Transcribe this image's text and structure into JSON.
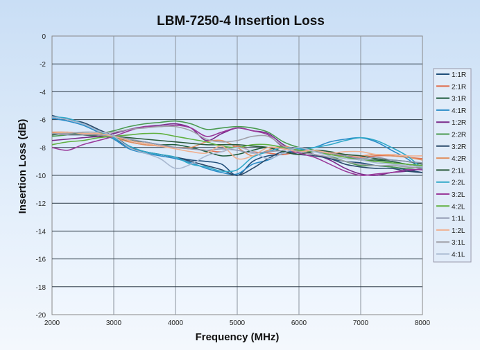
{
  "chart_data": {
    "type": "line",
    "title": "LBM-7250-4 Insertion Loss",
    "xlabel": "Frequency (MHz)",
    "ylabel": "Insertion Loss (dB)",
    "xlim": [
      2000,
      8000
    ],
    "ylim": [
      -20,
      0
    ],
    "xticks": [
      "2000",
      "3000",
      "4000",
      "5000",
      "6000",
      "7000",
      "8000"
    ],
    "yticks": [
      "0",
      "-2",
      "-4",
      "-6",
      "-8",
      "-10",
      "-12",
      "-14",
      "-16",
      "-18",
      "-20"
    ],
    "grid": true,
    "legend_position": "right",
    "x": [
      2000,
      2250,
      2500,
      2750,
      3000,
      3250,
      3500,
      3750,
      4000,
      4250,
      4500,
      4750,
      5000,
      5250,
      5500,
      5750,
      6000,
      6250,
      6500,
      6750,
      7000,
      7250,
      7500,
      7750,
      8000
    ],
    "series": [
      {
        "name": "1:1R",
        "color": "#1f4e79",
        "values": [
          -5.8,
          -6.0,
          -6.3,
          -6.8,
          -7.3,
          -8.0,
          -8.3,
          -8.5,
          -8.7,
          -8.9,
          -9.0,
          -9.2,
          -10.0,
          -9.0,
          -8.6,
          -8.5,
          -8.3,
          -8.5,
          -8.8,
          -9.0,
          -9.1,
          -9.3,
          -9.4,
          -9.6,
          -9.8
        ]
      },
      {
        "name": "2:1R",
        "color": "#e07050",
        "values": [
          -7.0,
          -7.1,
          -7.0,
          -7.2,
          -7.3,
          -7.6,
          -7.8,
          -7.9,
          -8.0,
          -8.1,
          -8.2,
          -8.3,
          -7.9,
          -8.3,
          -8.4,
          -8.5,
          -8.3,
          -8.2,
          -8.5,
          -8.6,
          -8.7,
          -8.6,
          -8.6,
          -8.7,
          -8.8
        ]
      },
      {
        "name": "3:1R",
        "color": "#1e5a3a",
        "values": [
          -7.0,
          -7.0,
          -7.1,
          -7.2,
          -7.3,
          -7.5,
          -7.6,
          -7.8,
          -7.8,
          -8.0,
          -8.3,
          -8.6,
          -8.5,
          -8.2,
          -8.0,
          -8.3,
          -8.5,
          -8.3,
          -8.4,
          -8.6,
          -8.9,
          -8.9,
          -9.0,
          -9.2,
          -9.3
        ]
      },
      {
        "name": "4:1R",
        "color": "#2a8cc8",
        "values": [
          -5.9,
          -6.1,
          -6.4,
          -6.9,
          -7.4,
          -8.1,
          -8.4,
          -8.6,
          -8.8,
          -9.1,
          -9.5,
          -9.8,
          -9.9,
          -9.2,
          -8.9,
          -8.4,
          -8.2,
          -8.0,
          -7.6,
          -7.4,
          -7.3,
          -7.6,
          -8.2,
          -8.8,
          -9.6
        ]
      },
      {
        "name": "1:2R",
        "color": "#7a2a8a",
        "values": [
          -7.5,
          -7.4,
          -7.3,
          -7.2,
          -7.0,
          -6.7,
          -6.5,
          -6.4,
          -6.3,
          -6.6,
          -7.5,
          -7.0,
          -6.6,
          -6.8,
          -7.0,
          -7.8,
          -8.3,
          -8.5,
          -8.9,
          -9.5,
          -9.9,
          -10.0,
          -9.8,
          -9.7,
          -9.5
        ]
      },
      {
        "name": "2:2R",
        "color": "#4a9a50",
        "values": [
          -7.2,
          -7.1,
          -7.0,
          -7.0,
          -6.8,
          -6.5,
          -6.3,
          -6.2,
          -6.1,
          -6.3,
          -6.7,
          -6.6,
          -6.5,
          -6.6,
          -6.9,
          -7.6,
          -8.0,
          -8.2,
          -8.6,
          -9.0,
          -9.3,
          -9.3,
          -9.4,
          -9.5,
          -9.4
        ]
      },
      {
        "name": "3:2R",
        "color": "#2a4a6a",
        "values": [
          -5.7,
          -6.0,
          -6.2,
          -6.7,
          -7.2,
          -7.9,
          -8.3,
          -8.5,
          -8.7,
          -9.0,
          -9.3,
          -9.6,
          -10.0,
          -9.5,
          -8.8,
          -8.3,
          -8.5,
          -8.6,
          -8.8,
          -9.2,
          -9.4,
          -9.5,
          -9.5,
          -9.7,
          -9.8
        ]
      },
      {
        "name": "4:2R",
        "color": "#e09060",
        "values": [
          -6.9,
          -6.9,
          -7.0,
          -7.1,
          -7.3,
          -7.6,
          -7.8,
          -7.9,
          -8.0,
          -8.0,
          -7.6,
          -7.5,
          -8.0,
          -8.6,
          -8.2,
          -7.9,
          -8.2,
          -8.3,
          -8.4,
          -8.5,
          -8.6,
          -8.5,
          -8.6,
          -8.7,
          -8.9
        ]
      },
      {
        "name": "2:1L",
        "color": "#2a5a3a",
        "values": [
          -7.1,
          -7.0,
          -7.1,
          -7.1,
          -7.2,
          -7.3,
          -7.4,
          -7.5,
          -7.6,
          -7.7,
          -7.8,
          -7.8,
          -7.8,
          -7.9,
          -8.0,
          -8.3,
          -8.5,
          -8.2,
          -8.3,
          -8.5,
          -8.6,
          -8.8,
          -8.9,
          -9.0,
          -9.2
        ]
      },
      {
        "name": "2:2L",
        "color": "#30a8c8",
        "values": [
          -5.8,
          -5.9,
          -6.3,
          -6.8,
          -7.3,
          -7.9,
          -8.3,
          -8.5,
          -8.7,
          -9.2,
          -9.4,
          -9.7,
          -9.6,
          -8.7,
          -8.3,
          -8.0,
          -8.1,
          -8.0,
          -7.8,
          -7.5,
          -7.3,
          -7.5,
          -8.0,
          -8.6,
          -9.5
        ]
      },
      {
        "name": "3:2L",
        "color": "#9a3a9a",
        "values": [
          -8.0,
          -8.2,
          -7.8,
          -7.5,
          -7.2,
          -6.8,
          -6.5,
          -6.5,
          -6.4,
          -6.6,
          -7.2,
          -6.9,
          -6.6,
          -6.8,
          -7.1,
          -8.0,
          -8.4,
          -8.7,
          -9.2,
          -9.7,
          -10.0,
          -9.9,
          -9.8,
          -9.6,
          -9.6
        ]
      },
      {
        "name": "4:2L",
        "color": "#60b040",
        "values": [
          -7.8,
          -7.6,
          -7.5,
          -7.3,
          -7.2,
          -7.1,
          -7.0,
          -7.0,
          -7.2,
          -7.4,
          -7.6,
          -7.9,
          -8.0,
          -7.8,
          -7.8,
          -8.0,
          -8.2,
          -8.3,
          -8.5,
          -8.7,
          -8.9,
          -9.0,
          -9.1,
          -9.2,
          -9.3
        ]
      },
      {
        "name": "1:1L",
        "color": "#9098b0",
        "values": [
          -7.0,
          -7.1,
          -7.1,
          -7.1,
          -7.2,
          -7.4,
          -7.6,
          -7.8,
          -8.0,
          -8.1,
          -8.2,
          -8.1,
          -8.2,
          -8.4,
          -8.3,
          -8.2,
          -8.0,
          -8.3,
          -8.4,
          -8.6,
          -8.8,
          -8.7,
          -8.9,
          -9.0,
          -9.1
        ]
      },
      {
        "name": "1:2L",
        "color": "#f0b090",
        "values": [
          -7.0,
          -6.9,
          -7.0,
          -7.0,
          -7.2,
          -7.5,
          -7.7,
          -7.9,
          -8.1,
          -8.3,
          -8.4,
          -7.9,
          -8.8,
          -8.6,
          -8.0,
          -8.1,
          -8.3,
          -8.2,
          -8.4,
          -8.3,
          -8.3,
          -8.5,
          -8.5,
          -8.6,
          -8.6
        ]
      },
      {
        "name": "3:1L",
        "color": "#a0a0a8",
        "values": [
          -7.0,
          -7.0,
          -6.9,
          -6.9,
          -6.9,
          -6.7,
          -6.6,
          -6.5,
          -6.5,
          -6.8,
          -7.4,
          -7.6,
          -7.5,
          -7.2,
          -7.2,
          -7.9,
          -8.3,
          -8.5,
          -8.7,
          -9.0,
          -9.2,
          -9.3,
          -9.3,
          -9.4,
          -9.5
        ]
      },
      {
        "name": "4:1L",
        "color": "#a8b8d0",
        "values": [
          -5.8,
          -6.0,
          -6.3,
          -6.8,
          -7.2,
          -8.0,
          -8.4,
          -8.8,
          -9.5,
          -9.2,
          -8.6,
          -8.3,
          -8.0,
          -8.3,
          -8.8,
          -8.4,
          -8.0,
          -8.3,
          -8.6,
          -8.8,
          -8.9,
          -9.1,
          -9.2,
          -9.3,
          -9.4
        ]
      }
    ]
  }
}
